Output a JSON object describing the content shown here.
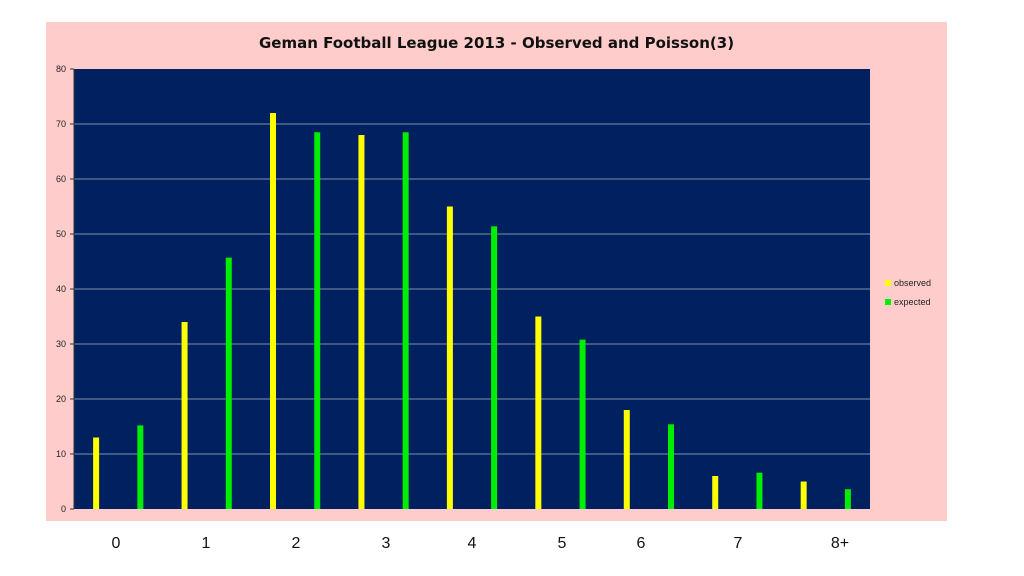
{
  "chart_data": {
    "type": "bar",
    "title": "Geman Football League 2013 - Observed and Poisson(3)",
    "xlabel": "",
    "ylabel": "",
    "ylim": [
      0,
      80
    ],
    "yticks": [
      0,
      10,
      20,
      30,
      40,
      50,
      60,
      70,
      80
    ],
    "grid": true,
    "legend_position": "right",
    "categories": [
      "0",
      "1",
      "2",
      "3",
      "4",
      "5",
      "6",
      "7",
      "8+"
    ],
    "series": [
      {
        "name": "observed",
        "color": "#ffff00",
        "values": [
          13,
          34,
          72,
          68,
          55,
          35,
          18,
          6,
          5
        ]
      },
      {
        "name": "expected",
        "color": "#00ee00",
        "values": [
          15.2,
          45.7,
          68.5,
          68.5,
          51.4,
          30.8,
          15.4,
          6.6,
          3.6
        ]
      }
    ],
    "colors": {
      "plot_background": "#002060",
      "chart_background": "#ffcccc",
      "gridline": "#7f8fa8"
    }
  }
}
